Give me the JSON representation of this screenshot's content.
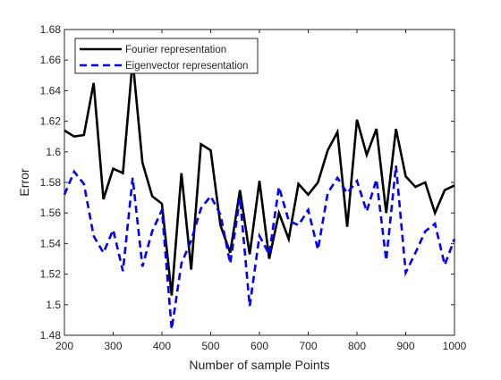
{
  "chart_data": {
    "type": "line",
    "xlabel": "Number of sample Points",
    "ylabel": "Error",
    "xlim": [
      200,
      1000
    ],
    "ylim": [
      1.48,
      1.68
    ],
    "grid": false,
    "legend_position": "top-left",
    "x_ticks": [
      "200",
      "300",
      "400",
      "500",
      "600",
      "700",
      "800",
      "900",
      "1000"
    ],
    "y_ticks": [
      "1.48",
      "1.5",
      "1.52",
      "1.54",
      "1.56",
      "1.58",
      "1.6",
      "1.62",
      "1.64",
      "1.66",
      "1.68"
    ],
    "x": [
      200,
      220,
      240,
      260,
      280,
      300,
      320,
      340,
      360,
      380,
      400,
      420,
      440,
      460,
      480,
      500,
      520,
      540,
      560,
      580,
      600,
      620,
      640,
      660,
      680,
      700,
      720,
      740,
      760,
      780,
      800,
      820,
      840,
      860,
      880,
      900,
      920,
      940,
      960,
      980,
      1000
    ],
    "series": [
      {
        "name": "Fourier representation",
        "color": "#000000",
        "style": "solid",
        "values": [
          1.614,
          1.61,
          1.611,
          1.645,
          1.569,
          1.589,
          1.586,
          1.66,
          1.593,
          1.571,
          1.566,
          1.506,
          1.586,
          1.523,
          1.605,
          1.601,
          1.552,
          1.534,
          1.575,
          1.533,
          1.581,
          1.53,
          1.56,
          1.543,
          1.579,
          1.572,
          1.58,
          1.601,
          1.613,
          1.551,
          1.621,
          1.598,
          1.615,
          1.56,
          1.615,
          1.584,
          1.577,
          1.58,
          1.56,
          1.575,
          1.578
        ]
      },
      {
        "name": "Eigenvector representation",
        "color": "#0000ff",
        "style": "dashed",
        "values": [
          1.572,
          1.587,
          1.579,
          1.545,
          1.534,
          1.549,
          1.522,
          1.583,
          1.525,
          1.548,
          1.562,
          1.484,
          1.527,
          1.542,
          1.563,
          1.571,
          1.559,
          1.527,
          1.57,
          1.499,
          1.545,
          1.533,
          1.577,
          1.555,
          1.552,
          1.562,
          1.536,
          1.573,
          1.583,
          1.573,
          1.581,
          1.561,
          1.582,
          1.529,
          1.591,
          1.521,
          1.534,
          1.548,
          1.553,
          1.526,
          1.543
        ]
      }
    ]
  }
}
